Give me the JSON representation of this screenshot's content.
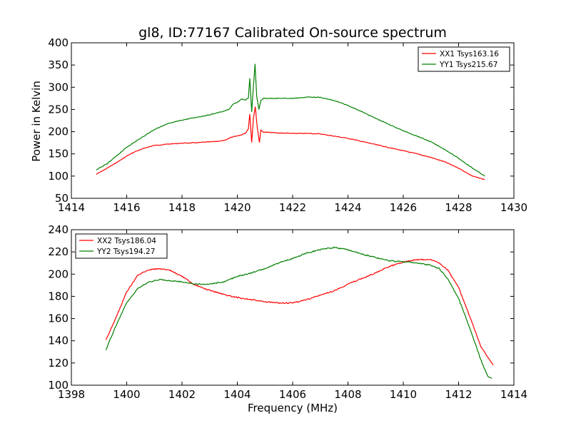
{
  "figure": {
    "title": "gl8, ID:77167 Calibrated On-source spectrum"
  },
  "chart_data": [
    {
      "type": "line",
      "title": "gl8, ID:77167 Calibrated On-source spectrum",
      "xlabel": "",
      "ylabel": "Power in Kelvin",
      "xlim": [
        1414,
        1430
      ],
      "ylim": [
        50,
        400
      ],
      "xticks": [
        "1414",
        "1416",
        "1418",
        "1420",
        "1422",
        "1424",
        "1426",
        "1428",
        "1430"
      ],
      "yticks": [
        "50",
        "100",
        "150",
        "200",
        "250",
        "300",
        "350",
        "400"
      ],
      "grid": false,
      "legend_position": "top-right",
      "series": [
        {
          "name": "XX1 Tsys163.16",
          "color": "#ff0000",
          "points": [
            [
              1414.9,
              104
            ],
            [
              1415.3,
              118
            ],
            [
              1415.7,
              133
            ],
            [
              1416.0,
              145
            ],
            [
              1416.3,
              155
            ],
            [
              1416.7,
              164
            ],
            [
              1417.0,
              169
            ],
            [
              1417.5,
              172
            ],
            [
              1418.0,
              174
            ],
            [
              1418.5,
              175
            ],
            [
              1419.0,
              177
            ],
            [
              1419.4,
              179
            ],
            [
              1419.6,
              181
            ],
            [
              1419.75,
              187
            ],
            [
              1419.95,
              190
            ],
            [
              1420.15,
              193
            ],
            [
              1420.3,
              197
            ],
            [
              1420.4,
              207
            ],
            [
              1420.45,
              240
            ],
            [
              1420.52,
              175
            ],
            [
              1420.58,
              230
            ],
            [
              1420.65,
              256
            ],
            [
              1420.72,
              210
            ],
            [
              1420.8,
              176
            ],
            [
              1420.85,
              203
            ],
            [
              1420.95,
              199
            ],
            [
              1421.5,
              197
            ],
            [
              1422.0,
              196
            ],
            [
              1422.6,
              196
            ],
            [
              1423.0,
              195
            ],
            [
              1423.5,
              190
            ],
            [
              1424.0,
              185
            ],
            [
              1424.5,
              178
            ],
            [
              1425.0,
              171
            ],
            [
              1425.5,
              164
            ],
            [
              1426.0,
              157
            ],
            [
              1426.5,
              150
            ],
            [
              1427.0,
              142
            ],
            [
              1427.5,
              132
            ],
            [
              1428.0,
              118
            ],
            [
              1428.5,
              100
            ],
            [
              1428.95,
              92
            ]
          ]
        },
        {
          "name": "YY1 Tsys215.67",
          "color": "#008000",
          "points": [
            [
              1414.9,
              114
            ],
            [
              1415.3,
              128
            ],
            [
              1415.7,
              149
            ],
            [
              1416.0,
              165
            ],
            [
              1416.5,
              185
            ],
            [
              1417.0,
              205
            ],
            [
              1417.5,
              218
            ],
            [
              1418.0,
              226
            ],
            [
              1418.5,
              232
            ],
            [
              1419.0,
              238
            ],
            [
              1419.5,
              246
            ],
            [
              1419.7,
              250
            ],
            [
              1419.85,
              262
            ],
            [
              1420.0,
              266
            ],
            [
              1420.15,
              273
            ],
            [
              1420.3,
              271
            ],
            [
              1420.4,
              276
            ],
            [
              1420.45,
              320
            ],
            [
              1420.52,
              245
            ],
            [
              1420.58,
              300
            ],
            [
              1420.64,
              352
            ],
            [
              1420.7,
              280
            ],
            [
              1420.78,
              250
            ],
            [
              1420.85,
              270
            ],
            [
              1420.95,
              275
            ],
            [
              1421.3,
              275
            ],
            [
              1422.0,
              275
            ],
            [
              1422.6,
              278
            ],
            [
              1423.0,
              277
            ],
            [
              1423.5,
              270
            ],
            [
              1424.0,
              259
            ],
            [
              1424.5,
              245
            ],
            [
              1425.0,
              230
            ],
            [
              1425.5,
              216
            ],
            [
              1426.0,
              202
            ],
            [
              1426.5,
              190
            ],
            [
              1427.0,
              177
            ],
            [
              1427.5,
              160
            ],
            [
              1428.0,
              140
            ],
            [
              1428.5,
              118
            ],
            [
              1428.95,
              100
            ]
          ]
        }
      ]
    },
    {
      "type": "line",
      "title": "",
      "xlabel": "Frequency (MHz)",
      "ylabel": "",
      "xlim": [
        1398,
        1414
      ],
      "ylim": [
        100,
        240
      ],
      "xticks": [
        "1398",
        "1400",
        "1402",
        "1404",
        "1406",
        "1408",
        "1410",
        "1412",
        "1414"
      ],
      "yticks": [
        "100",
        "120",
        "140",
        "160",
        "180",
        "200",
        "220",
        "240"
      ],
      "grid": false,
      "legend_position": "top-left",
      "series": [
        {
          "name": "XX2 Tsys186.04",
          "color": "#ff0000",
          "points": [
            [
              1399.25,
              141
            ],
            [
              1399.6,
              160
            ],
            [
              1400.0,
              184
            ],
            [
              1400.4,
              199
            ],
            [
              1400.8,
              204
            ],
            [
              1401.2,
              205
            ],
            [
              1401.6,
              203
            ],
            [
              1402.0,
              198
            ],
            [
              1402.4,
              191
            ],
            [
              1402.8,
              187
            ],
            [
              1403.2,
              184
            ],
            [
              1403.6,
              181
            ],
            [
              1404.0,
              179
            ],
            [
              1404.5,
              177
            ],
            [
              1405.0,
              175
            ],
            [
              1405.5,
              174
            ],
            [
              1406.0,
              174
            ],
            [
              1406.5,
              177
            ],
            [
              1407.0,
              181
            ],
            [
              1407.5,
              185
            ],
            [
              1408.0,
              191
            ],
            [
              1408.5,
              196
            ],
            [
              1409.0,
              201
            ],
            [
              1409.5,
              207
            ],
            [
              1410.0,
              211
            ],
            [
              1410.5,
              213
            ],
            [
              1411.0,
              213
            ],
            [
              1411.3,
              210
            ],
            [
              1411.6,
              204
            ],
            [
              1412.0,
              188
            ],
            [
              1412.4,
              162
            ],
            [
              1412.8,
              135
            ],
            [
              1413.2,
              120
            ],
            [
              1413.25,
              118
            ]
          ]
        },
        {
          "name": "YY2 Tsys194.27",
          "color": "#008000",
          "points": [
            [
              1399.25,
              132
            ],
            [
              1399.6,
              153
            ],
            [
              1400.0,
              174
            ],
            [
              1400.4,
              187
            ],
            [
              1400.8,
              193
            ],
            [
              1401.2,
              195
            ],
            [
              1401.6,
              194
            ],
            [
              1402.0,
              193
            ],
            [
              1402.5,
              191
            ],
            [
              1403.0,
              191
            ],
            [
              1403.5,
              193
            ],
            [
              1404.0,
              198
            ],
            [
              1404.5,
              201
            ],
            [
              1405.0,
              205
            ],
            [
              1405.5,
              210
            ],
            [
              1406.0,
              214
            ],
            [
              1406.5,
              219
            ],
            [
              1407.0,
              222
            ],
            [
              1407.5,
              224
            ],
            [
              1408.0,
              222
            ],
            [
              1408.5,
              218
            ],
            [
              1409.0,
              215
            ],
            [
              1409.5,
              212
            ],
            [
              1410.0,
              211
            ],
            [
              1410.5,
              210
            ],
            [
              1411.0,
              208
            ],
            [
              1411.3,
              205
            ],
            [
              1411.6,
              196
            ],
            [
              1412.0,
              178
            ],
            [
              1412.4,
              152
            ],
            [
              1412.8,
              123
            ],
            [
              1413.05,
              108
            ],
            [
              1413.2,
              106
            ]
          ]
        }
      ]
    }
  ]
}
